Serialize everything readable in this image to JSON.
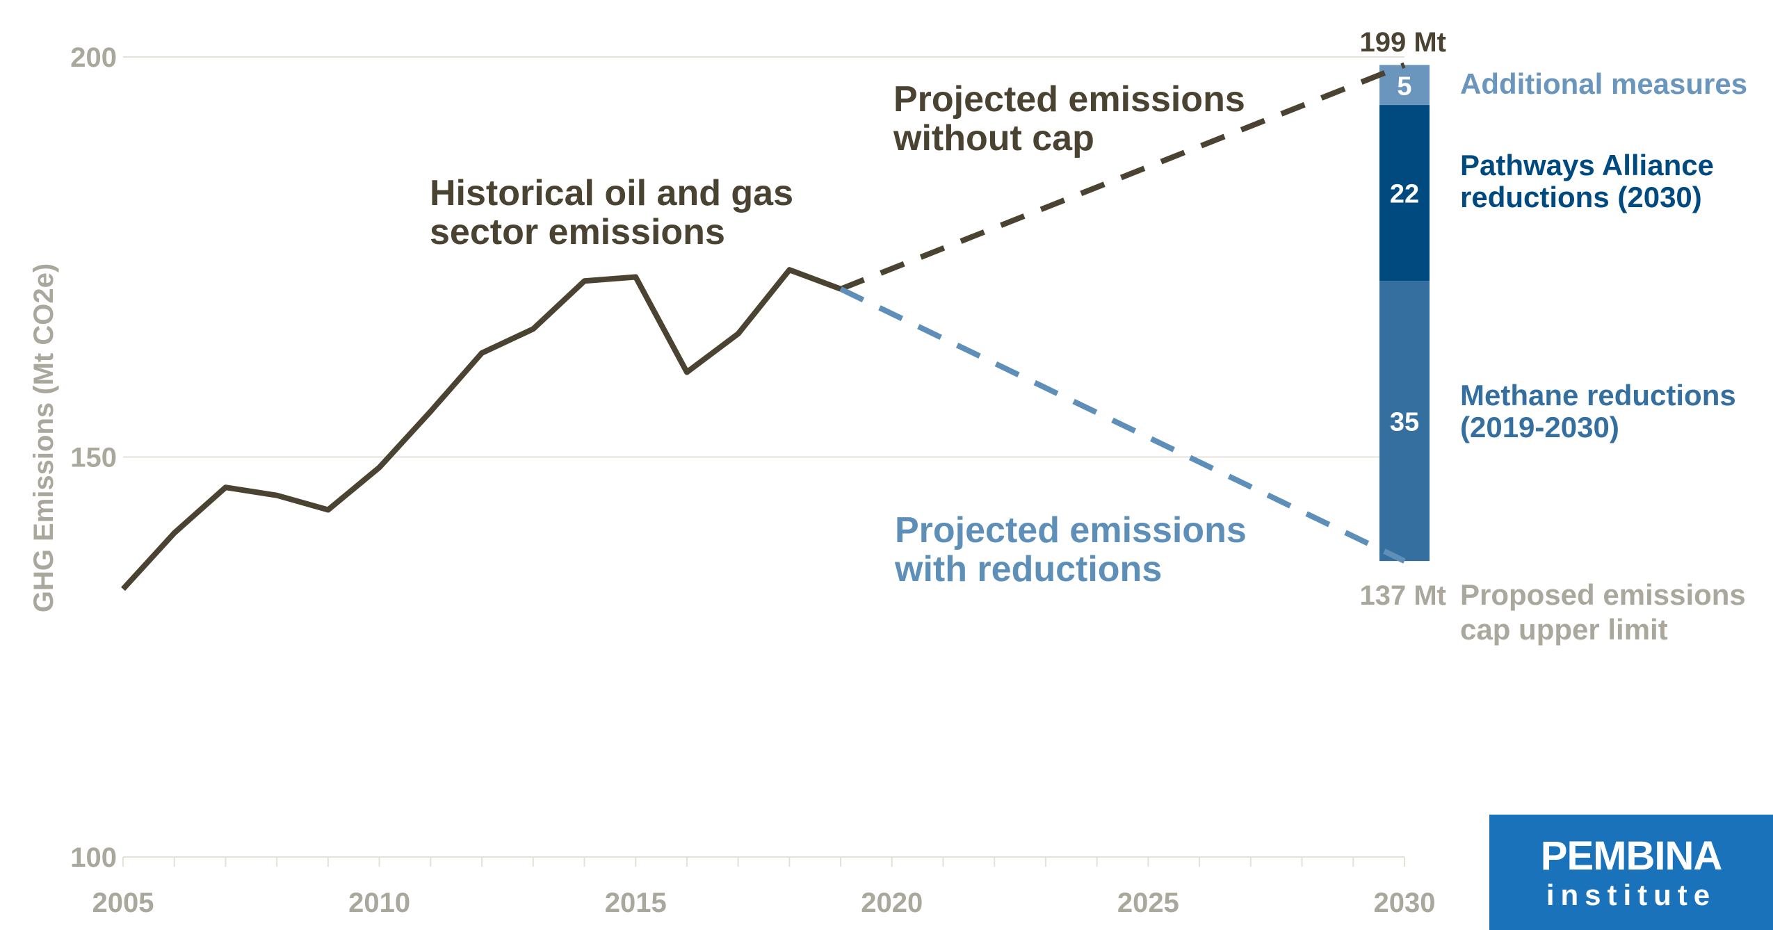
{
  "colors": {
    "historical": "#4a4331",
    "projected_with_reductions": "#5e8fb8",
    "axis_text": "#aaa79c",
    "grid": "#e3e1da",
    "additional_measures": "#6a95bd",
    "pathways_alliance": "#004a80",
    "methane": "#356f9f",
    "logo_bg": "#1a72ba"
  },
  "logo": {
    "name": "PEMBINA",
    "sub": "institute"
  },
  "chart_data": {
    "type": "line",
    "ylabel": "GHG Emissions (Mt CO2e)",
    "ylim": [
      100,
      200
    ],
    "xlim": [
      2005,
      2030
    ],
    "x_ticks": [
      "2005",
      "2010",
      "2015",
      "2020",
      "2025",
      "2030"
    ],
    "y_ticks": [
      "100",
      "150",
      "200"
    ],
    "grid": true,
    "series": [
      {
        "name": "Historical oil and gas sector emissions",
        "style": "solid",
        "x": [
          2005,
          2006,
          2007,
          2008,
          2009,
          2010,
          2011,
          2012,
          2013,
          2014,
          2015,
          2016,
          2017,
          2018,
          2019
        ],
        "values": [
          133.5,
          140.5,
          146.2,
          145.2,
          143.4,
          148.7,
          155.7,
          163,
          166,
          172,
          172.5,
          160.6,
          165.4,
          173.4,
          171
        ]
      },
      {
        "name": "Projected emissions without cap",
        "style": "dashed",
        "x": [
          2019,
          2030
        ],
        "values": [
          171,
          199
        ]
      },
      {
        "name": "Projected emissions with reductions",
        "style": "dashed",
        "x": [
          2019,
          2030
        ],
        "values": [
          171,
          137
        ]
      }
    ],
    "stacked_bar": {
      "x": 2030,
      "base": 137,
      "segments": [
        {
          "label": "Methane reductions (2019-2030)",
          "value": 35,
          "display": "35"
        },
        {
          "label": "Pathways Alliance reductions (2030)",
          "value": 22,
          "display": "22"
        },
        {
          "label": "Additional measures",
          "value": 5,
          "display": "5"
        }
      ]
    },
    "annotations": {
      "historical": [
        "Historical oil and gas",
        "sector emissions"
      ],
      "without_cap": [
        "Projected emissions",
        "without cap"
      ],
      "with_reductions": [
        "Projected emissions",
        "with reductions"
      ],
      "top_value": "199 Mt",
      "bottom_value": "137 Mt",
      "cap_label": [
        "Proposed emissions",
        "cap upper limit"
      ],
      "methane_label": [
        "Methane reductions",
        "(2019-2030)"
      ],
      "pathways_label": [
        "Pathways Alliance",
        "reductions (2030)"
      ],
      "additional_label": [
        "Additional measures"
      ]
    }
  }
}
